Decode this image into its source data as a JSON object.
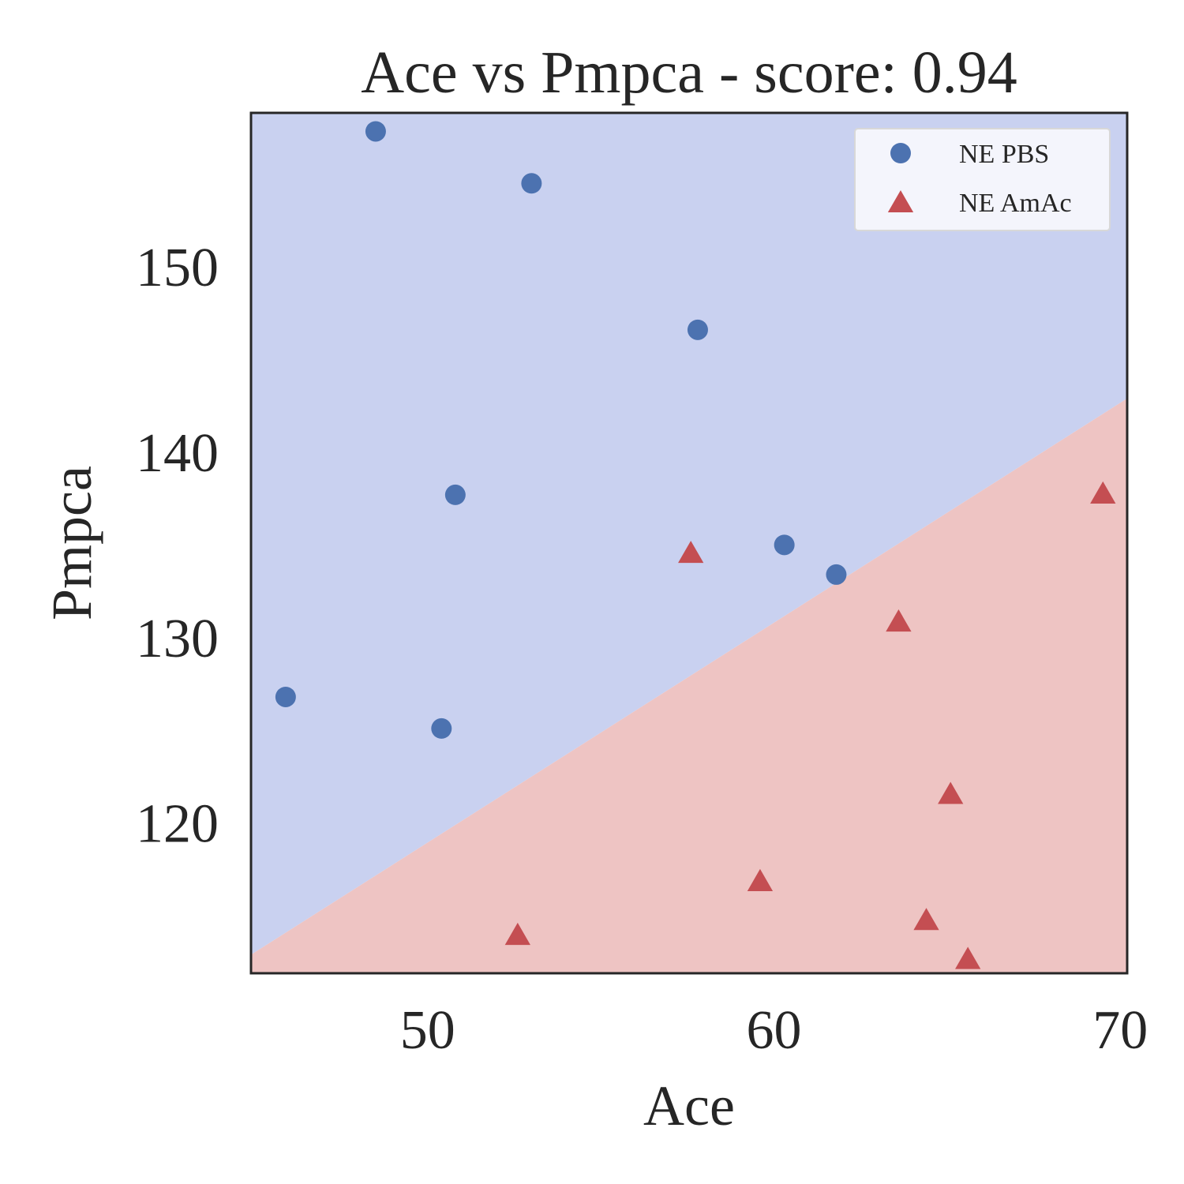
{
  "chart_data": {
    "type": "scatter",
    "title": "Ace vs Pmpca - score: 0.94",
    "xlabel": "Ace",
    "ylabel": "Pmpca",
    "xlim": [
      44.9,
      70.2
    ],
    "ylim": [
      111.9,
      158.3
    ],
    "xticks": [
      50,
      60,
      70
    ],
    "yticks": [
      120,
      130,
      140,
      150
    ],
    "grid": false,
    "legend_position": "top-right",
    "decision_boundary": {
      "line": [
        [
          44.9,
          112.9
        ],
        [
          70.2,
          142.9
        ]
      ],
      "above_region_color": "#c9d1f0",
      "below_region_color": "#eec4c3"
    },
    "series": [
      {
        "name": "NE PBS",
        "marker": "circle",
        "color": "#4c72b0",
        "points": [
          [
            48.5,
            157.3
          ],
          [
            53.0,
            154.5
          ],
          [
            50.8,
            137.7
          ],
          [
            57.8,
            146.6
          ],
          [
            60.3,
            135.0
          ],
          [
            61.8,
            133.4
          ],
          [
            45.9,
            126.8
          ],
          [
            50.4,
            125.1
          ]
        ]
      },
      {
        "name": "NE AmAc",
        "marker": "triangle",
        "color": "#c44e52",
        "points": [
          [
            69.5,
            137.7
          ],
          [
            57.6,
            134.5
          ],
          [
            63.6,
            130.8
          ],
          [
            65.1,
            121.5
          ],
          [
            59.6,
            116.8
          ],
          [
            64.4,
            114.7
          ],
          [
            52.6,
            113.9
          ],
          [
            65.6,
            112.6
          ]
        ]
      }
    ]
  }
}
